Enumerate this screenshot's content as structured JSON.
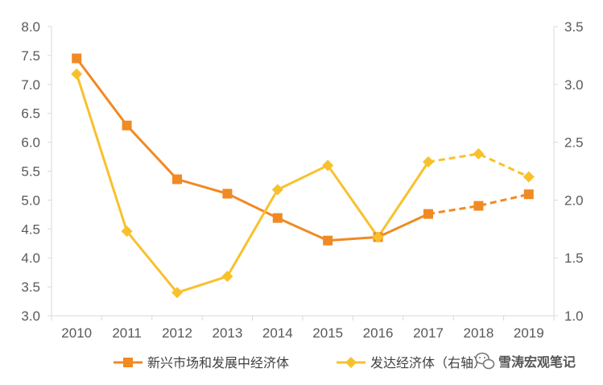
{
  "chart_data": {
    "type": "line",
    "categories": [
      "2010",
      "2011",
      "2012",
      "2013",
      "2014",
      "2015",
      "2016",
      "2017",
      "2018",
      "2019"
    ],
    "series": [
      {
        "name": "新兴市场和发展中经济体",
        "axis": "left",
        "color": "#f08a24",
        "marker": "square",
        "values": [
          7.45,
          6.29,
          5.36,
          5.11,
          4.69,
          4.3,
          4.36,
          4.76,
          4.9,
          5.1
        ],
        "projected_from_index": 7
      },
      {
        "name": "发达经济体（右轴）",
        "axis": "right",
        "color": "#f8c12c",
        "marker": "diamond",
        "values": [
          3.09,
          1.73,
          1.2,
          1.34,
          2.09,
          2.3,
          1.68,
          2.33,
          2.4,
          2.2
        ],
        "projected_from_index": 7
      }
    ],
    "y_left": {
      "min": 3.0,
      "max": 8.0,
      "ticks": [
        "3.0",
        "3.5",
        "4.0",
        "4.5",
        "5.0",
        "5.5",
        "6.0",
        "6.5",
        "7.0",
        "7.5",
        "8.0"
      ]
    },
    "y_right": {
      "min": 1.0,
      "max": 3.5,
      "ticks": [
        "1.0",
        "1.5",
        "2.0",
        "2.5",
        "3.0",
        "3.5"
      ]
    },
    "grid": false,
    "legend_position": "bottom",
    "title": "",
    "xlabel": "",
    "ylabel": ""
  },
  "legend": {
    "emerging": "新兴市场和发展中经济体",
    "advanced": "发达经济体（右轴）"
  },
  "watermark": {
    "text": "雪涛宏观笔记",
    "icon": "wechat-icon"
  },
  "colors": {
    "axis": "#d9d9d9",
    "tick_text": "#595959"
  }
}
